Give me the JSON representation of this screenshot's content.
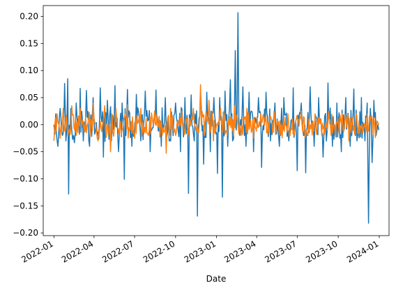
{
  "chart_data": {
    "type": "line",
    "xlabel": "Date",
    "ylabel": "",
    "ylim": [
      -0.205,
      0.22
    ],
    "xlim": [
      "2021-12-08",
      "2024-01-23"
    ],
    "x_ticks": [
      "2022-01",
      "2022-04",
      "2022-07",
      "2022-10",
      "2023-01",
      "2023-04",
      "2023-07",
      "2023-10",
      "2024-01"
    ],
    "y_ticks": [
      -0.2,
      -0.15,
      -0.1,
      -0.05,
      0.0,
      0.05,
      0.1,
      0.15,
      0.2
    ],
    "y_tick_labels": [
      "−0.20",
      "−0.15",
      "−0.10",
      "−0.05",
      "0.00",
      "0.05",
      "0.10",
      "0.15",
      "0.20"
    ],
    "x_range": [
      "2022-01-01",
      "2023-12-31"
    ],
    "grid": false,
    "series": [
      {
        "color": "#1f77b4",
        "points": [
          [
            "2022-01-01",
            0.0
          ],
          [
            "2022-01-05",
            0.02
          ],
          [
            "2022-01-10",
            -0.04
          ],
          [
            "2022-01-15",
            0.03
          ],
          [
            "2022-01-20",
            -0.02
          ],
          [
            "2022-01-25",
            0.076
          ],
          [
            "2022-01-28",
            -0.03
          ],
          [
            "2022-02-01",
            0.085
          ],
          [
            "2022-02-03",
            -0.128
          ],
          [
            "2022-02-08",
            0.03
          ],
          [
            "2022-02-14",
            -0.02
          ],
          [
            "2022-02-20",
            0.04
          ],
          [
            "2022-03-01",
            0.067
          ],
          [
            "2022-03-08",
            -0.03
          ],
          [
            "2022-03-15",
            0.063
          ],
          [
            "2022-03-22",
            -0.04
          ],
          [
            "2022-03-30",
            0.05
          ],
          [
            "2022-04-08",
            -0.02
          ],
          [
            "2022-04-15",
            0.068
          ],
          [
            "2022-04-22",
            -0.06
          ],
          [
            "2022-05-01",
            0.045
          ],
          [
            "2022-05-10",
            -0.03
          ],
          [
            "2022-05-18",
            0.072
          ],
          [
            "2022-05-26",
            -0.05
          ],
          [
            "2022-06-03",
            0.04
          ],
          [
            "2022-06-08",
            -0.101
          ],
          [
            "2022-06-15",
            0.065
          ],
          [
            "2022-06-25",
            -0.04
          ],
          [
            "2022-07-05",
            0.056
          ],
          [
            "2022-07-15",
            -0.03
          ],
          [
            "2022-07-25",
            0.062
          ],
          [
            "2022-08-05",
            -0.05
          ],
          [
            "2022-08-18",
            0.064
          ],
          [
            "2022-08-30",
            -0.04
          ],
          [
            "2022-09-08",
            0.05
          ],
          [
            "2022-09-20",
            -0.03
          ],
          [
            "2022-10-01",
            0.04
          ],
          [
            "2022-10-12",
            -0.05
          ],
          [
            "2022-10-22",
            0.05
          ],
          [
            "2022-10-30",
            -0.127
          ],
          [
            "2022-11-05",
            0.055
          ],
          [
            "2022-11-12",
            -0.03
          ],
          [
            "2022-11-19",
            -0.169
          ],
          [
            "2022-11-26",
            0.06
          ],
          [
            "2022-12-03",
            -0.073
          ],
          [
            "2022-12-10",
            0.06
          ],
          [
            "2022-12-18",
            -0.05
          ],
          [
            "2022-12-26",
            0.05
          ],
          [
            "2023-01-03",
            -0.09
          ],
          [
            "2023-01-08",
            0.05
          ],
          [
            "2023-01-14",
            -0.134
          ],
          [
            "2023-01-20",
            0.062
          ],
          [
            "2023-01-26",
            -0.04
          ],
          [
            "2023-02-01",
            0.083
          ],
          [
            "2023-02-06",
            -0.03
          ],
          [
            "2023-02-12",
            0.137
          ],
          [
            "2023-02-14",
            -0.01
          ],
          [
            "2023-02-18",
            0.207
          ],
          [
            "2023-02-22",
            -0.02
          ],
          [
            "2023-03-01",
            0.07
          ],
          [
            "2023-03-08",
            -0.04
          ],
          [
            "2023-03-15",
            0.06
          ],
          [
            "2023-03-25",
            -0.05
          ],
          [
            "2023-04-05",
            0.05
          ],
          [
            "2023-04-12",
            -0.079
          ],
          [
            "2023-04-22",
            0.06
          ],
          [
            "2023-05-02",
            -0.03
          ],
          [
            "2023-05-12",
            0.04
          ],
          [
            "2023-05-22",
            -0.04
          ],
          [
            "2023-06-01",
            0.05
          ],
          [
            "2023-06-12",
            -0.03
          ],
          [
            "2023-06-22",
            0.068
          ],
          [
            "2023-07-01",
            -0.085
          ],
          [
            "2023-07-10",
            0.04
          ],
          [
            "2023-07-20",
            -0.089
          ],
          [
            "2023-07-30",
            0.07
          ],
          [
            "2023-08-08",
            -0.04
          ],
          [
            "2023-08-18",
            0.05
          ],
          [
            "2023-08-28",
            -0.06
          ],
          [
            "2023-09-08",
            0.077
          ],
          [
            "2023-09-18",
            -0.04
          ],
          [
            "2023-09-28",
            0.04
          ],
          [
            "2023-10-08",
            -0.05
          ],
          [
            "2023-10-18",
            0.05
          ],
          [
            "2023-10-28",
            -0.04
          ],
          [
            "2023-11-05",
            0.066
          ],
          [
            "2023-11-12",
            -0.03
          ],
          [
            "2023-11-22",
            0.05
          ],
          [
            "2023-11-30",
            -0.03
          ],
          [
            "2023-12-05",
            0.04
          ],
          [
            "2023-12-08",
            -0.182
          ],
          [
            "2023-12-12",
            0.03
          ],
          [
            "2023-12-16",
            -0.07
          ],
          [
            "2023-12-20",
            0.045
          ],
          [
            "2023-12-25",
            -0.02
          ],
          [
            "2023-12-31",
            -0.01
          ]
        ]
      },
      {
        "color": "#ff7f0e",
        "points": [
          [
            "2022-01-01",
            -0.03
          ],
          [
            "2022-01-08",
            0.02
          ],
          [
            "2022-01-15",
            -0.025
          ],
          [
            "2022-01-22",
            0.03
          ],
          [
            "2022-02-01",
            -0.02
          ],
          [
            "2022-02-10",
            0.035
          ],
          [
            "2022-02-20",
            -0.02
          ],
          [
            "2022-03-01",
            0.03
          ],
          [
            "2022-03-15",
            -0.015
          ],
          [
            "2022-03-30",
            0.04
          ],
          [
            "2022-04-10",
            -0.03
          ],
          [
            "2022-04-25",
            0.035
          ],
          [
            "2022-05-08",
            -0.05
          ],
          [
            "2022-05-20",
            0.03
          ],
          [
            "2022-06-01",
            -0.02
          ],
          [
            "2022-06-15",
            0.037
          ],
          [
            "2022-07-01",
            -0.025
          ],
          [
            "2022-07-15",
            0.03
          ],
          [
            "2022-08-01",
            -0.02
          ],
          [
            "2022-08-15",
            0.025
          ],
          [
            "2022-09-01",
            -0.02
          ],
          [
            "2022-09-10",
            -0.053
          ],
          [
            "2022-09-20",
            0.03
          ],
          [
            "2022-10-01",
            -0.02
          ],
          [
            "2022-10-15",
            0.025
          ],
          [
            "2022-10-30",
            -0.02
          ],
          [
            "2022-11-10",
            0.03
          ],
          [
            "2022-11-20",
            -0.01
          ],
          [
            "2022-11-26",
            0.074
          ],
          [
            "2022-12-05",
            -0.02
          ],
          [
            "2022-12-15",
            0.045
          ],
          [
            "2022-12-25",
            -0.03
          ],
          [
            "2023-01-10",
            0.03
          ],
          [
            "2023-01-25",
            -0.02
          ],
          [
            "2023-02-10",
            0.035
          ],
          [
            "2023-02-25",
            -0.02
          ],
          [
            "2023-03-10",
            0.03
          ],
          [
            "2023-03-25",
            -0.025
          ],
          [
            "2023-04-10",
            0.02
          ],
          [
            "2023-04-25",
            -0.015
          ],
          [
            "2023-05-10",
            0.025
          ],
          [
            "2023-05-25",
            -0.02
          ],
          [
            "2023-06-10",
            0.02
          ],
          [
            "2023-06-25",
            -0.02
          ],
          [
            "2023-07-10",
            0.025
          ],
          [
            "2023-07-25",
            -0.02
          ],
          [
            "2023-08-10",
            0.02
          ],
          [
            "2023-08-25",
            -0.02
          ],
          [
            "2023-09-10",
            0.025
          ],
          [
            "2023-09-25",
            -0.02
          ],
          [
            "2023-10-10",
            0.02
          ],
          [
            "2023-10-25",
            -0.03
          ],
          [
            "2023-11-10",
            0.02
          ],
          [
            "2023-11-25",
            -0.015
          ],
          [
            "2023-12-10",
            0.015
          ],
          [
            "2023-12-25",
            -0.01
          ],
          [
            "2023-12-31",
            0.0
          ]
        ]
      }
    ]
  }
}
